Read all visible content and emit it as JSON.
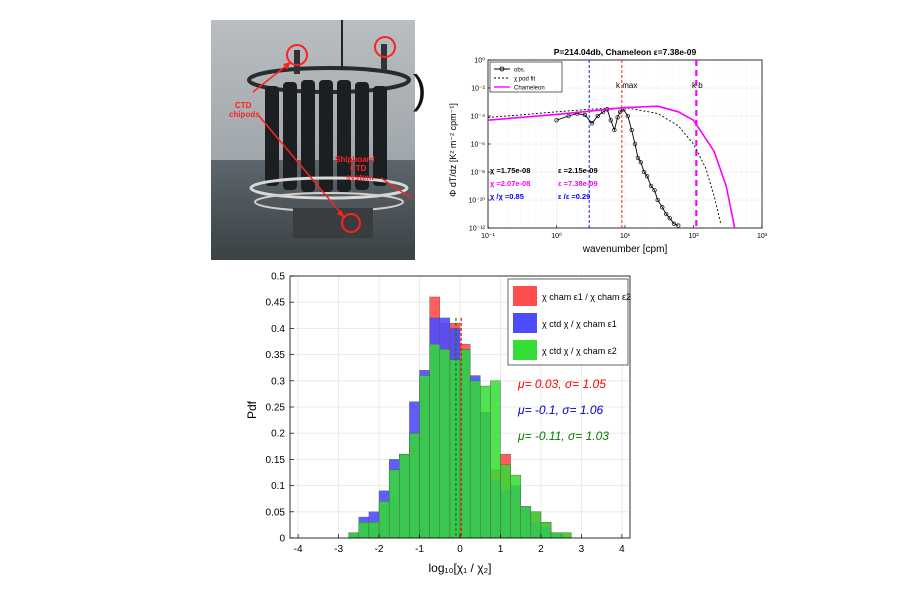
{
  "photo": {
    "label_chipods": [
      "CTD",
      "chipods"
    ],
    "label_system": [
      "Shipboard",
      "CTD",
      "system"
    ]
  },
  "stray_char": ")",
  "spectrum_axes": {
    "title": "P=214.04db, Chameleon ε=7.38e-09",
    "xlabel": "wavenumber [cpm]",
    "ylabel": "Φ dT/dz [K² m⁻² cpm⁻¹]",
    "xticks": [
      "10⁻¹",
      "10⁰",
      "10¹",
      "10²",
      "10³"
    ],
    "yticks": [
      "10⁰",
      "10⁻²",
      "10⁻⁴",
      "10⁻⁶",
      "10⁻⁸",
      "10⁻¹⁰",
      "10⁻¹²"
    ],
    "legend": [
      "obs.",
      "χ pod fit",
      "Chameleon"
    ],
    "kmax_label": "k max",
    "kb_label": "k b",
    "annotations": [
      {
        "text": "χ =1.75e-08",
        "color": "#000000"
      },
      {
        "text": "ε =2.15e-09",
        "color": "#000000"
      },
      {
        "text": "χ =2.07e-08",
        "color": "#ff00ff"
      },
      {
        "text": "ε =7.38e-09",
        "color": "#ff00ff"
      },
      {
        "text": "χ /χ =0.85",
        "color": "#0000ff"
      },
      {
        "text": "ε /ε =0.29",
        "color": "#0000ff"
      }
    ]
  },
  "hist_axes": {
    "xlabel": "log₁₀[χ₁ / χ₂]",
    "ylabel": "Pdf",
    "xticks": [
      "-4",
      "-3",
      "-2",
      "-1",
      "0",
      "1",
      "2",
      "3",
      "4"
    ],
    "yticks": [
      "0",
      "0.05",
      "0.1",
      "0.15",
      "0.2",
      "0.25",
      "0.3",
      "0.35",
      "0.4",
      "0.45",
      "0.5"
    ],
    "legend": [
      "χ cham ε1 / χ cham ε2",
      "χ ctd χ / χ cham ε1",
      "χ ctd χ / χ cham ε2"
    ],
    "stats": [
      {
        "text": "μ= 0.03, σ= 1.05",
        "color": "#ff0000"
      },
      {
        "text": "μ= -0.1, σ= 1.06",
        "color": "#0000cc"
      },
      {
        "text": "μ= -0.11, σ= 1.03",
        "color": "#008000"
      }
    ]
  },
  "chart_data": [
    {
      "type": "line",
      "title": "P=214.04db, Chameleon ε=7.38e-09",
      "xlabel": "wavenumber [cpm]",
      "ylabel": "Φ dT/dz [K² m⁻² cpm⁻¹]",
      "xscale": "log",
      "yscale": "log",
      "xlim": [
        0.1,
        1000
      ],
      "ylim": [
        1e-12,
        1
      ],
      "grid": true,
      "legend_position": "top-left",
      "series": [
        {
          "name": "obs.",
          "color": "#000000",
          "style": "solid-circles",
          "x": [
            1.0,
            1.5,
            2.0,
            2.6,
            3.3,
            4.0,
            4.8,
            5.5,
            6.2,
            7.0,
            7.8,
            8.5,
            9.5,
            11,
            12.5,
            14,
            15.5,
            17,
            19,
            21,
            24,
            27,
            30,
            35,
            40,
            45,
            52,
            60
          ],
          "y": [
            5e-05,
            0.0001,
            0.00015,
            0.00012,
            3e-05,
            0.0001,
            0.0002,
            0.0003,
            5e-05,
            1e-05,
            8e-05,
            0.0002,
            0.0003,
            0.0001,
            1e-05,
            1e-06,
            1e-07,
            5e-08,
            1e-08,
            5e-09,
            1e-09,
            5e-10,
            1e-10,
            3e-11,
            1e-11,
            5e-12,
            2e-12,
            1.5e-12
          ]
        },
        {
          "name": "χ pod fit",
          "color": "#000000",
          "style": "dashed",
          "x": [
            0.1,
            0.3,
            1,
            3,
            10,
            30,
            60,
            100,
            150,
            200,
            250
          ],
          "y": [
            8e-05,
            0.00012,
            0.0002,
            0.0003,
            0.0004,
            0.00015,
            2e-05,
            1e-06,
            2e-08,
            2e-10,
            2e-12
          ]
        },
        {
          "name": "Chameleon",
          "color": "#ff00ff",
          "style": "solid",
          "x": [
            0.1,
            0.3,
            1,
            3,
            10,
            30,
            60,
            100,
            200,
            300,
            400
          ],
          "y": [
            5e-05,
            8e-05,
            0.00013,
            0.00022,
            0.0004,
            0.0005,
            0.0002,
            5e-05,
            3e-07,
            1e-09,
            1e-12
          ]
        }
      ],
      "vlines": [
        {
          "x": 3,
          "color": "#0000ff",
          "style": "dashed"
        },
        {
          "x": 9,
          "color": "#ff0000",
          "style": "dashed"
        },
        {
          "x": 110,
          "color": "#ff00ff",
          "style": "dashed-thick"
        }
      ]
    },
    {
      "type": "bar",
      "subtype": "histogram",
      "xlabel": "log₁₀[χ₁ / χ₂]",
      "ylabel": "Pdf",
      "xlim": [
        -4.2,
        4.2
      ],
      "ylim": [
        0,
        0.5
      ],
      "bin_width": 0.25,
      "bin_starts": [
        -2.75,
        -2.5,
        -2.25,
        -2.0,
        -1.75,
        -1.5,
        -1.25,
        -1.0,
        -0.75,
        -0.5,
        -0.25,
        0.0,
        0.25,
        0.5,
        0.75,
        1.0,
        1.25,
        1.5,
        1.75,
        2.0,
        2.25,
        2.5,
        2.75
      ],
      "legend_position": "top-right",
      "grid": true,
      "series": [
        {
          "name": "χ cham ε1 / χ cham ε2",
          "color": "#ff4d4d",
          "values": [
            0.01,
            0.03,
            0.02,
            0.04,
            0.07,
            0.16,
            0.19,
            0.3,
            0.46,
            0.41,
            0.41,
            0.37,
            0.3,
            0.24,
            0.13,
            0.16,
            0.09,
            0.06,
            0.05,
            0.03,
            0.01,
            0.01,
            0.0
          ]
        },
        {
          "name": "χ ctd χ / χ cham ε1",
          "color": "#4d4dff",
          "values": [
            0.01,
            0.04,
            0.05,
            0.09,
            0.15,
            0.16,
            0.26,
            0.32,
            0.42,
            0.42,
            0.4,
            0.36,
            0.31,
            0.24,
            0.11,
            0.09,
            0.1,
            0.06,
            0.03,
            0.02,
            0.01,
            0.0,
            0.0
          ]
        },
        {
          "name": "χ ctd χ / χ cham ε2",
          "color": "#33dd33",
          "values": [
            0.01,
            0.03,
            0.03,
            0.07,
            0.13,
            0.16,
            0.2,
            0.31,
            0.37,
            0.36,
            0.34,
            0.36,
            0.3,
            0.29,
            0.3,
            0.14,
            0.12,
            0.06,
            0.05,
            0.03,
            0.01,
            0.01,
            0.0
          ]
        }
      ],
      "vlines": [
        {
          "x": -0.1,
          "color": "#008000",
          "style": "dashed"
        },
        {
          "x": 0.03,
          "color": "#ff0000",
          "style": "dashed"
        }
      ]
    }
  ]
}
